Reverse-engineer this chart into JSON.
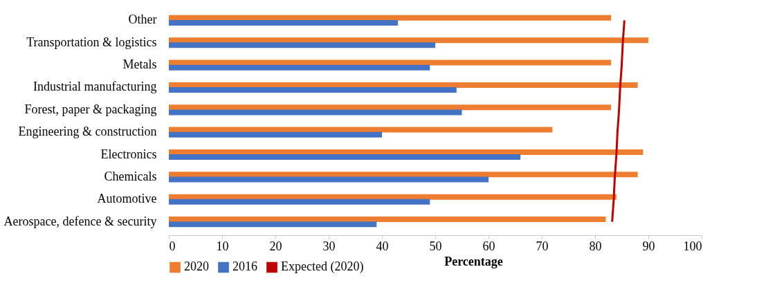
{
  "chart_data": {
    "type": "bar",
    "orientation": "horizontal",
    "xlabel": "Percentage",
    "categories": [
      "Other",
      "Transportation & logistics",
      "Metals",
      "Industrial manufacturing",
      "Forest, paper & packaging",
      "Engineering & construction",
      "Electronics",
      "Chemicals",
      "Automotive",
      "Aerospace, defence & security"
    ],
    "series": [
      {
        "name": "2020",
        "color": "#ed7d31",
        "values": [
          83,
          90,
          83,
          88,
          83,
          72,
          89,
          88,
          84,
          82
        ]
      },
      {
        "name": "2016",
        "color": "#4472c4",
        "values": [
          43,
          50,
          49,
          54,
          55,
          40,
          66,
          60,
          49,
          39
        ]
      },
      {
        "name": "Expected (2020)",
        "type": "line",
        "color": "#c00000",
        "values": [
          85.5,
          85.2,
          85,
          84.7,
          84.5,
          84.2,
          84,
          83.7,
          83.5,
          83.2
        ]
      }
    ],
    "xlim": [
      0,
      100
    ],
    "xticks": [
      0,
      10,
      20,
      30,
      40,
      50,
      60,
      70,
      80,
      90,
      100
    ],
    "legend": "bottom"
  }
}
